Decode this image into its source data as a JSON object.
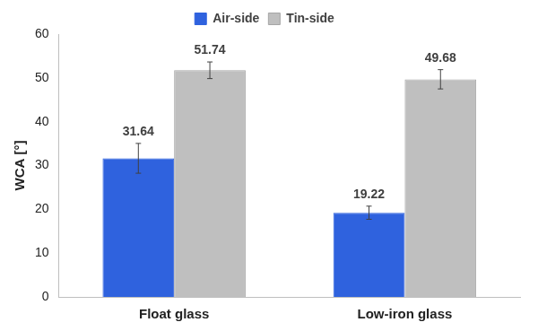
{
  "chart_data": {
    "type": "bar",
    "categories": [
      "Float glass",
      "Low-iron glass"
    ],
    "y_label": "WCA [°]",
    "series": [
      {
        "name": "Air-side",
        "color": "#2f62de",
        "values": [
          31.64,
          19.22
        ],
        "errors": [
          3.4,
          1.5
        ]
      },
      {
        "name": "Tin-side",
        "color": "#bfbfbf",
        "values": [
          51.74,
          49.68
        ],
        "errors": [
          1.9,
          2.2
        ]
      }
    ],
    "ylim": [
      0,
      60
    ],
    "yticks": [
      0,
      10,
      20,
      30,
      40,
      50,
      60
    ],
    "grid": false,
    "legend": "top",
    "data_labels": true
  }
}
